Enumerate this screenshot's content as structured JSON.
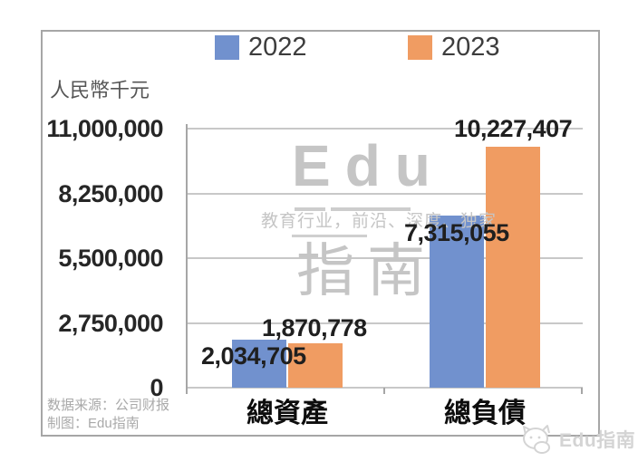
{
  "chart_data": {
    "type": "bar",
    "unit_label": "人民幣千元",
    "categories": [
      "總資產",
      "總負債"
    ],
    "series": [
      {
        "name": "2022",
        "color": "#7191CE",
        "values": [
          2034705,
          7315055
        ],
        "value_labels": [
          "2,034,705",
          "7,315,055"
        ]
      },
      {
        "name": "2023",
        "color": "#F09C62",
        "values": [
          1870778,
          10227407
        ],
        "value_labels": [
          "1,870,778",
          "10,227,407"
        ]
      }
    ],
    "ylim": [
      0,
      11000000
    ],
    "yticks": [
      0,
      2750000,
      5500000,
      8250000,
      11000000
    ],
    "ytick_labels": [
      "0",
      "2,750,000",
      "5,500,000",
      "8,250,000",
      "11,000,000"
    ],
    "grid": true,
    "legend_position": "top"
  },
  "watermark": {
    "brand_top": "Edu",
    "tagline": "教育行业，前沿、深度、独家",
    "brand_bottom": "指南"
  },
  "footer": {
    "source": "数据来源：公司财报",
    "credit": "制图：Edu指南"
  },
  "corner_logo": {
    "text": "Edu指南"
  },
  "colors": {
    "gridline": "#C8C8C8",
    "axis": "#A6A6A6",
    "frame_border": "#A6A6A6",
    "watermark": "#C5C5C5"
  }
}
